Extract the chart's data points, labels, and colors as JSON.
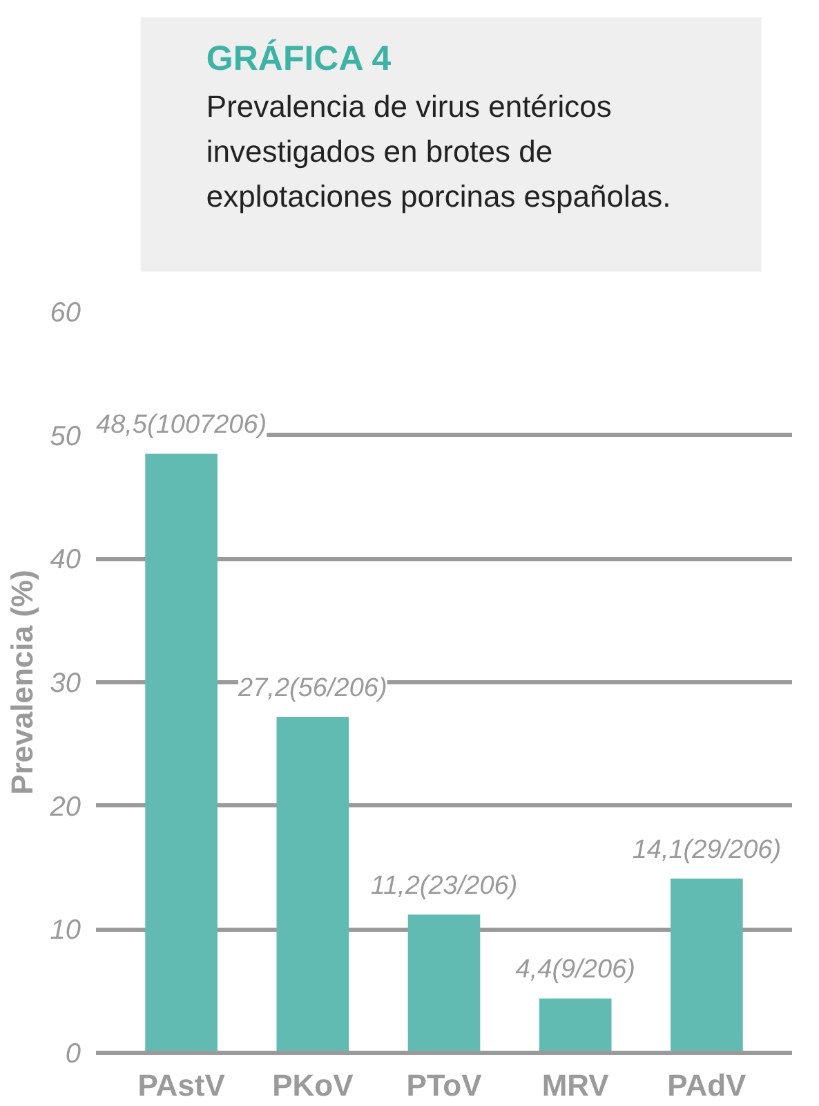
{
  "chart_data": {
    "type": "bar",
    "title": "GRÁFICA 4",
    "subtitle": "Prevalencia de virus entéricos investigados en brotes de explotaciones porcinas españolas.",
    "ylabel": "Prevalencia (%)",
    "categories": [
      "PAstV",
      "PKoV",
      "PToV",
      "MRV",
      "PAdV"
    ],
    "values": [
      48.5,
      27.2,
      11.2,
      4.4,
      14.1
    ],
    "value_labels": [
      "48,5(1007206)",
      "27,2(56/206)",
      "11,2(23/206)",
      "4,4(9/206)",
      "14,1(29/206)"
    ],
    "color": "#62bbb3",
    "ylim": [
      0,
      60
    ],
    "yticks": [
      0,
      10,
      20,
      30,
      40,
      50,
      60
    ],
    "grid": "y"
  }
}
